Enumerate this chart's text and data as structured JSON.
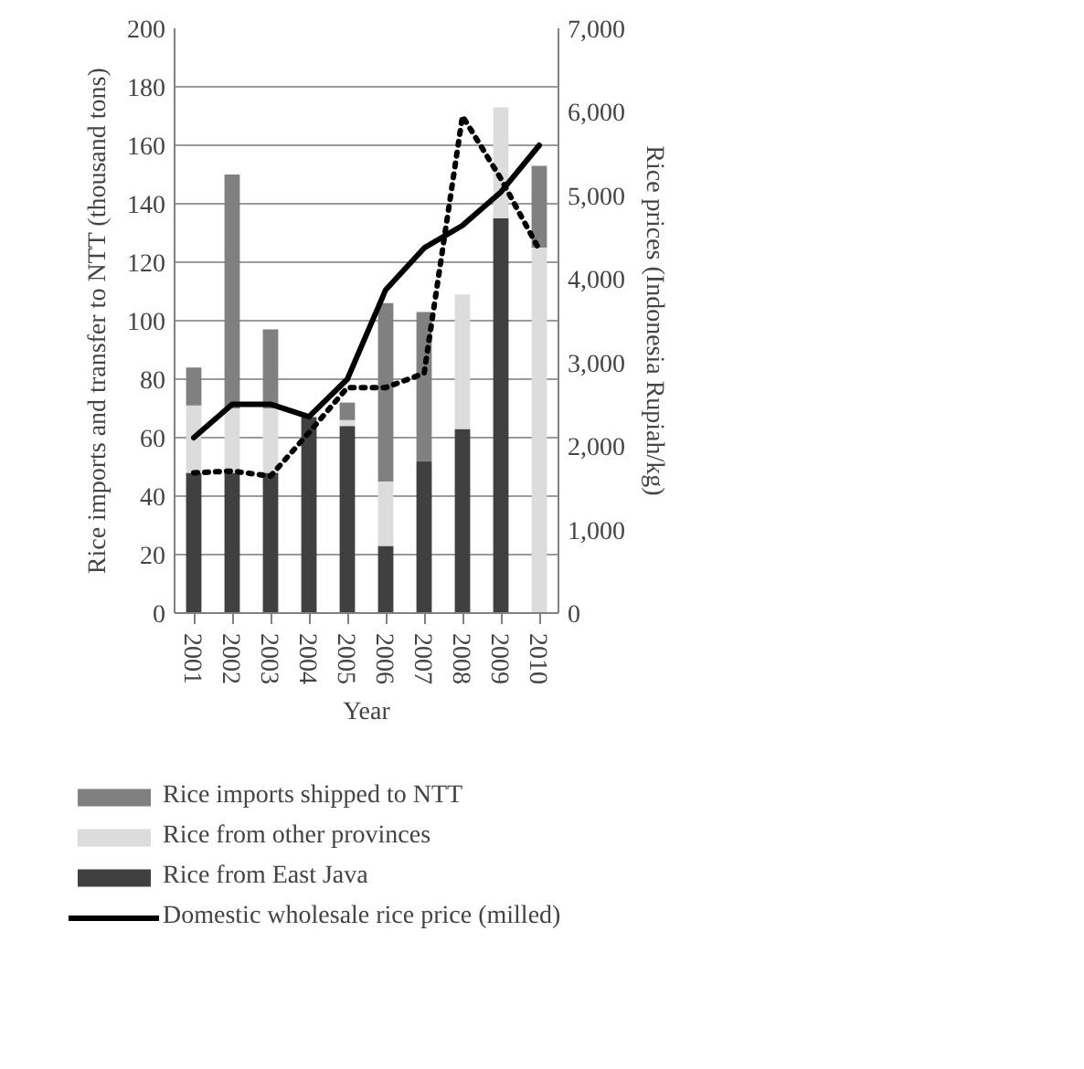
{
  "chart_data": {
    "type": "bar",
    "stacked": true,
    "xlabel": "Year",
    "ylabel": "Rice imports and transfer to NTT (thousand tons)",
    "y2label": "Rice prices (Indonesia Rupiah/kg)",
    "categories": [
      "2001",
      "2002",
      "2003",
      "2004",
      "2005",
      "2006",
      "2007",
      "2008",
      "2009",
      "2010"
    ],
    "series": [
      {
        "name": "Rice from East Java",
        "color": "#404040",
        "values": [
          48,
          48,
          48,
          67,
          64,
          23,
          52,
          63,
          135,
          0
        ]
      },
      {
        "name": "Rice from other provinces",
        "color": "#dcdcdc",
        "values": [
          23,
          22,
          22,
          0,
          2,
          22,
          0,
          46,
          38,
          125
        ]
      },
      {
        "name": "Rice imports shipped to NTT",
        "color": "#808080",
        "values": [
          13,
          80,
          27,
          0,
          6,
          61,
          51,
          0,
          0,
          28
        ]
      },
      {
        "name": "Domestic wholesale rice price (milled)",
        "type": "line",
        "axis": "y2",
        "color": "#000000",
        "line_style": "solid",
        "values": [
          2100,
          2500,
          2500,
          2350,
          2800,
          3870,
          4370,
          4640,
          5040,
          5600
        ]
      },
      {
        "type": "line",
        "axis": "y2",
        "color": "#000000",
        "line_style": "dotted",
        "values": [
          1680,
          1700,
          1640,
          2160,
          2700,
          2700,
          2870,
          5950,
          5200,
          4350
        ]
      }
    ],
    "ylim": [
      0,
      200
    ],
    "yticks": [
      0,
      20,
      40,
      60,
      80,
      100,
      120,
      140,
      160,
      180,
      200
    ],
    "y2lim": [
      0,
      7000
    ],
    "y2ticks": [
      0,
      {
        "value": 1000,
        "label": "1,000"
      },
      {
        "value": 2000,
        "label": "2,000"
      },
      {
        "value": 3000,
        "label": "3,000"
      },
      {
        "value": 4000,
        "label": "4,000"
      },
      {
        "value": 5000,
        "label": "5,000"
      },
      {
        "value": 6000,
        "label": "6,000"
      },
      {
        "value": 7000,
        "label": "7,000"
      }
    ],
    "grid": "y",
    "legend": "bottom"
  }
}
